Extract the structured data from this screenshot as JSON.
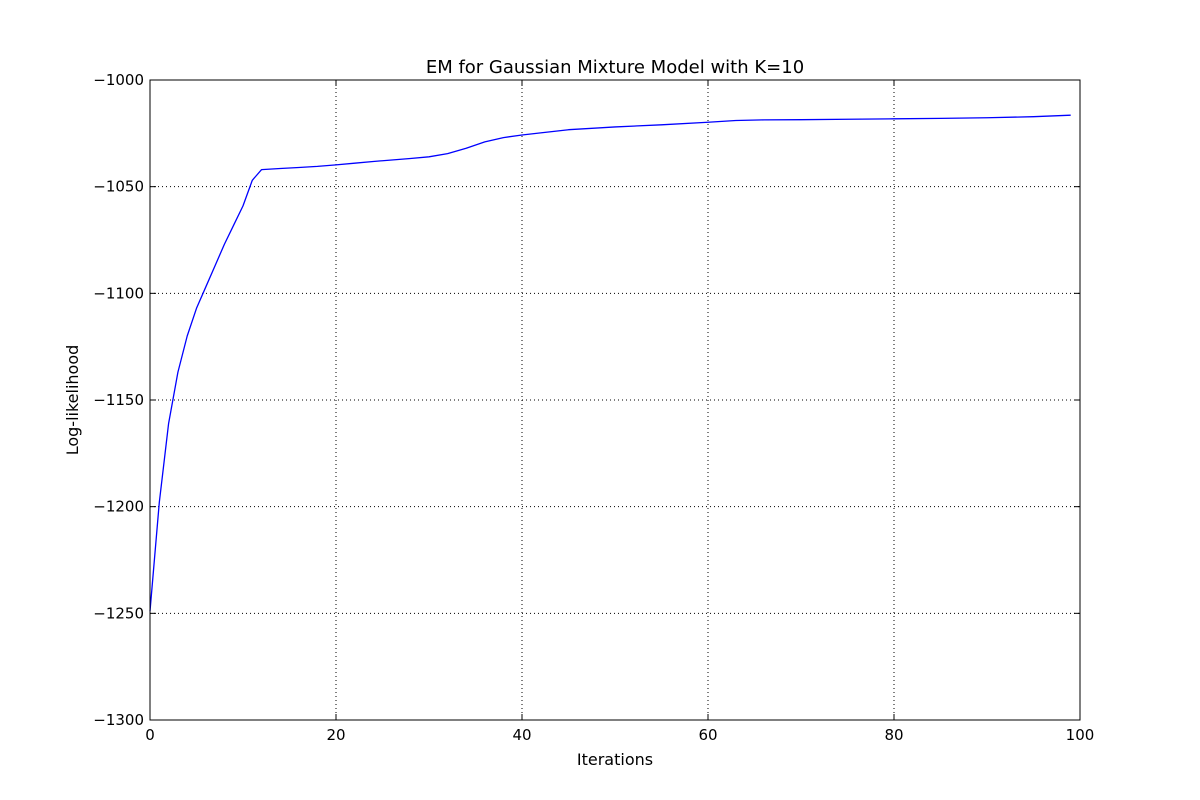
{
  "chart_data": {
    "type": "line",
    "title": "EM for Gaussian Mixture Model with K=10",
    "xlabel": "Iterations",
    "ylabel": "Log-likelihood",
    "xlim": [
      0,
      100
    ],
    "ylim": [
      -1300,
      -1000
    ],
    "xticks": [
      0,
      20,
      40,
      60,
      80,
      100
    ],
    "yticks": [
      -1000,
      -1050,
      -1100,
      -1150,
      -1200,
      -1250,
      -1300
    ],
    "xtick_labels": [
      "0",
      "20",
      "40",
      "60",
      "80",
      "100"
    ],
    "ytick_labels": [
      "−1000",
      "−1050",
      "−1100",
      "−1150",
      "−1200",
      "−1250",
      "−1300"
    ],
    "grid": true,
    "grid_style": "dotted",
    "line_color": "#0000ff",
    "series": [
      {
        "x": [
          0,
          1,
          2,
          3,
          4,
          5,
          6,
          7,
          8,
          9,
          10,
          11,
          12,
          14,
          16,
          18,
          20,
          22,
          24,
          26,
          28,
          30,
          32,
          34,
          36,
          38,
          40,
          42,
          45,
          50,
          55,
          60,
          63,
          66,
          70,
          75,
          80,
          85,
          90,
          95,
          99
        ],
        "y": [
          -1249,
          -1198,
          -1161,
          -1137,
          -1120,
          -1107,
          -1097,
          -1087,
          -1077,
          -1068,
          -1059,
          -1047,
          -1042,
          -1041.5,
          -1041,
          -1040.5,
          -1039.8,
          -1039,
          -1038.2,
          -1037.5,
          -1036.8,
          -1036,
          -1034.5,
          -1032,
          -1029,
          -1027,
          -1025.8,
          -1024.8,
          -1023.3,
          -1022,
          -1021,
          -1019.8,
          -1019,
          -1018.7,
          -1018.6,
          -1018.4,
          -1018.2,
          -1018,
          -1017.7,
          -1017.2,
          -1016.5
        ]
      }
    ]
  }
}
